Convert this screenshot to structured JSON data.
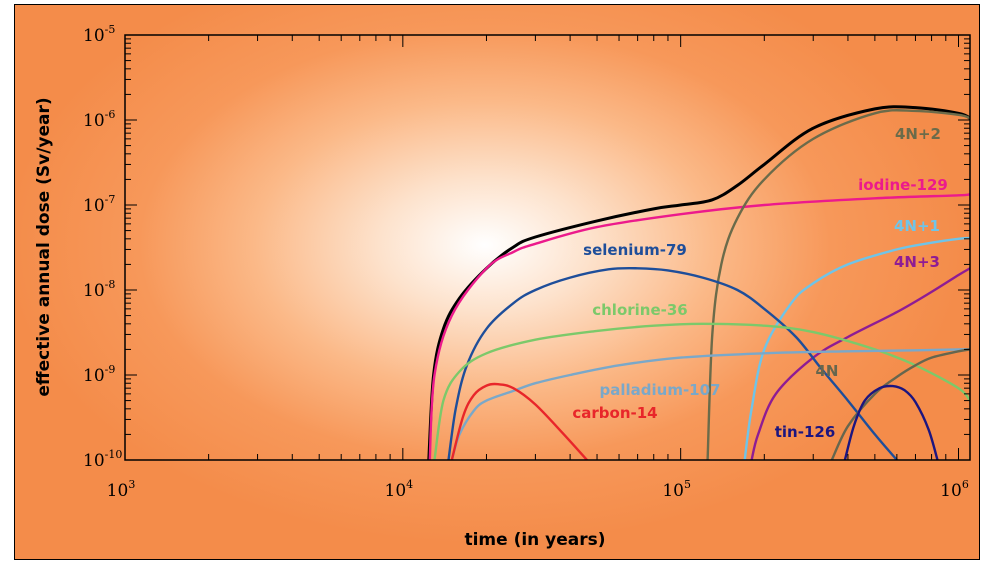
{
  "chart_data": {
    "type": "line",
    "xlabel": "time (in years)",
    "ylabel": "effective annual dose (Sv/year)",
    "x_scale": "log",
    "y_scale": "log",
    "xlim": [
      1000,
      1100000
    ],
    "ylim": [
      1e-10,
      1e-05
    ],
    "x_ticks": [
      {
        "base": "10",
        "exp": "3",
        "value": 1000
      },
      {
        "base": "10",
        "exp": "4",
        "value": 10000
      },
      {
        "base": "10",
        "exp": "5",
        "value": 100000
      },
      {
        "base": "10",
        "exp": "6",
        "value": 1000000
      }
    ],
    "y_ticks": [
      {
        "base": "10",
        "exp": "-5",
        "value": 1e-05
      },
      {
        "base": "10",
        "exp": "-6",
        "value": 1e-06
      },
      {
        "base": "10",
        "exp": "-7",
        "value": 1e-07
      },
      {
        "base": "10",
        "exp": "-8",
        "value": 1e-08
      },
      {
        "base": "10",
        "exp": "-9",
        "value": 1e-09
      },
      {
        "base": "10",
        "exp": "-10",
        "value": 1e-10
      }
    ],
    "grid": false,
    "series": [
      {
        "color": "#000000",
        "x": [
          12400,
          12900,
          14000,
          16000,
          20000,
          25000,
          30000,
          50000,
          80000,
          100000,
          130000,
          160000,
          200000,
          300000,
          500000,
          700000,
          1000000,
          1100000
        ],
        "y": [
          1e-10,
          1e-09,
          3.5e-09,
          8e-09,
          1.8e-08,
          3.2e-08,
          4.2e-08,
          6.5e-08,
          9e-08,
          1e-07,
          1.15e-07,
          1.7e-07,
          3e-07,
          8e-07,
          1.35e-06,
          1.4e-06,
          1.2e-06,
          1.05e-06
        ]
      },
      {
        "name": "iodine-129",
        "color": "#ec1a8c",
        "x": [
          12500,
          13000,
          15000,
          20000,
          25000,
          30000,
          50000,
          100000,
          200000,
          500000,
          1000000,
          1100000
        ],
        "y": [
          1e-10,
          1e-09,
          5e-09,
          1.8e-08,
          2.8e-08,
          3.5e-08,
          5.5e-08,
          7.8e-08,
          1e-07,
          1.2e-07,
          1.3e-07,
          1.35e-07
        ]
      },
      {
        "name": "4N+2",
        "color": "#6b6b4a",
        "x": [
          125000,
          130000,
          140000,
          160000,
          200000,
          300000,
          500000,
          700000,
          1000000,
          1100000
        ],
        "y": [
          1e-10,
          3e-09,
          2e-08,
          7e-08,
          2e-07,
          6e-07,
          1.2e-06,
          1.28e-06,
          1.15e-06,
          1.05e-06
        ]
      },
      {
        "name": "4N+1",
        "color": "#6fc4e8",
        "x": [
          170000,
          180000,
          200000,
          250000,
          300000,
          400000,
          600000,
          800000,
          1000000,
          1100000
        ],
        "y": [
          1e-10,
          4e-10,
          2e-09,
          7e-09,
          1.2e-08,
          2e-08,
          3e-08,
          3.6e-08,
          4e-08,
          4.1e-08
        ]
      },
      {
        "name": "4N+3",
        "color": "#8e1c94",
        "x": [
          180000,
          190000,
          220000,
          300000,
          400000,
          600000,
          800000,
          1000000,
          1100000
        ],
        "y": [
          1e-10,
          2e-10,
          6e-10,
          1.6e-09,
          2.8e-09,
          5.5e-09,
          9.5e-09,
          1.5e-08,
          1.8e-08
        ]
      },
      {
        "name": "selenium-79",
        "color": "#1e4e9a",
        "x": [
          14600,
          15500,
          17000,
          20000,
          25000,
          30000,
          40000,
          55000,
          70000,
          90000,
          120000,
          160000,
          200000,
          260000,
          320000,
          400000,
          500000,
          600000
        ],
        "y": [
          1e-10,
          4e-10,
          1.3e-09,
          3.5e-09,
          7e-09,
          1e-08,
          1.4e-08,
          1.75e-08,
          1.8e-08,
          1.7e-08,
          1.4e-08,
          1e-08,
          6e-09,
          2.8e-09,
          1.2e-09,
          5e-10,
          2e-10,
          1e-10
        ]
      },
      {
        "name": "chlorine-36",
        "color": "#7cc96a",
        "x": [
          13000,
          14000,
          16000,
          20000,
          30000,
          50000,
          80000,
          120000,
          200000,
          300000,
          500000,
          700000,
          1000000,
          1100000
        ],
        "y": [
          1e-10,
          5e-10,
          1.1e-09,
          1.8e-09,
          2.6e-09,
          3.3e-09,
          3.8e-09,
          4e-09,
          3.8e-09,
          3.2e-09,
          2e-09,
          1.3e-09,
          7e-10,
          5e-10
        ]
      },
      {
        "name": "palladium-107",
        "color": "#7aa8c9",
        "x": [
          15000,
          16000,
          18000,
          20000,
          25000,
          30000,
          40000,
          60000,
          100000,
          200000,
          400000,
          700000,
          1000000,
          1100000
        ],
        "y": [
          1e-10,
          2e-10,
          3.8e-10,
          5e-10,
          6.5e-10,
          8e-10,
          1e-09,
          1.3e-09,
          1.6e-09,
          1.8e-09,
          1.9e-09,
          1.95e-09,
          2e-09,
          2e-09
        ]
      },
      {
        "name": "4N",
        "color": "#66664e",
        "x": [
          350000,
          400000,
          500000,
          600000,
          700000,
          800000,
          1000000,
          1100000
        ],
        "y": [
          1e-10,
          2.5e-10,
          6e-10,
          9.5e-10,
          1.3e-09,
          1.6e-09,
          1.9e-09,
          2e-09
        ]
      },
      {
        "name": "carbon-14",
        "color": "#e8262a",
        "x": [
          15000,
          16500,
          18000,
          20000,
          22000,
          25000,
          30000,
          38000,
          46000
        ],
        "y": [
          1e-10,
          3.3e-10,
          5.8e-10,
          7.5e-10,
          7.8e-10,
          7e-10,
          4.5e-10,
          2e-10,
          1e-10
        ]
      },
      {
        "name": "tin-126",
        "color": "#1c1580",
        "x": [
          390000,
          420000,
          460000,
          520000,
          580000,
          640000,
          700000,
          780000,
          840000
        ],
        "y": [
          1e-10,
          2.5e-10,
          5e-10,
          7e-10,
          7.4e-10,
          6.6e-10,
          4.8e-10,
          2.3e-10,
          1e-10
        ]
      }
    ]
  }
}
